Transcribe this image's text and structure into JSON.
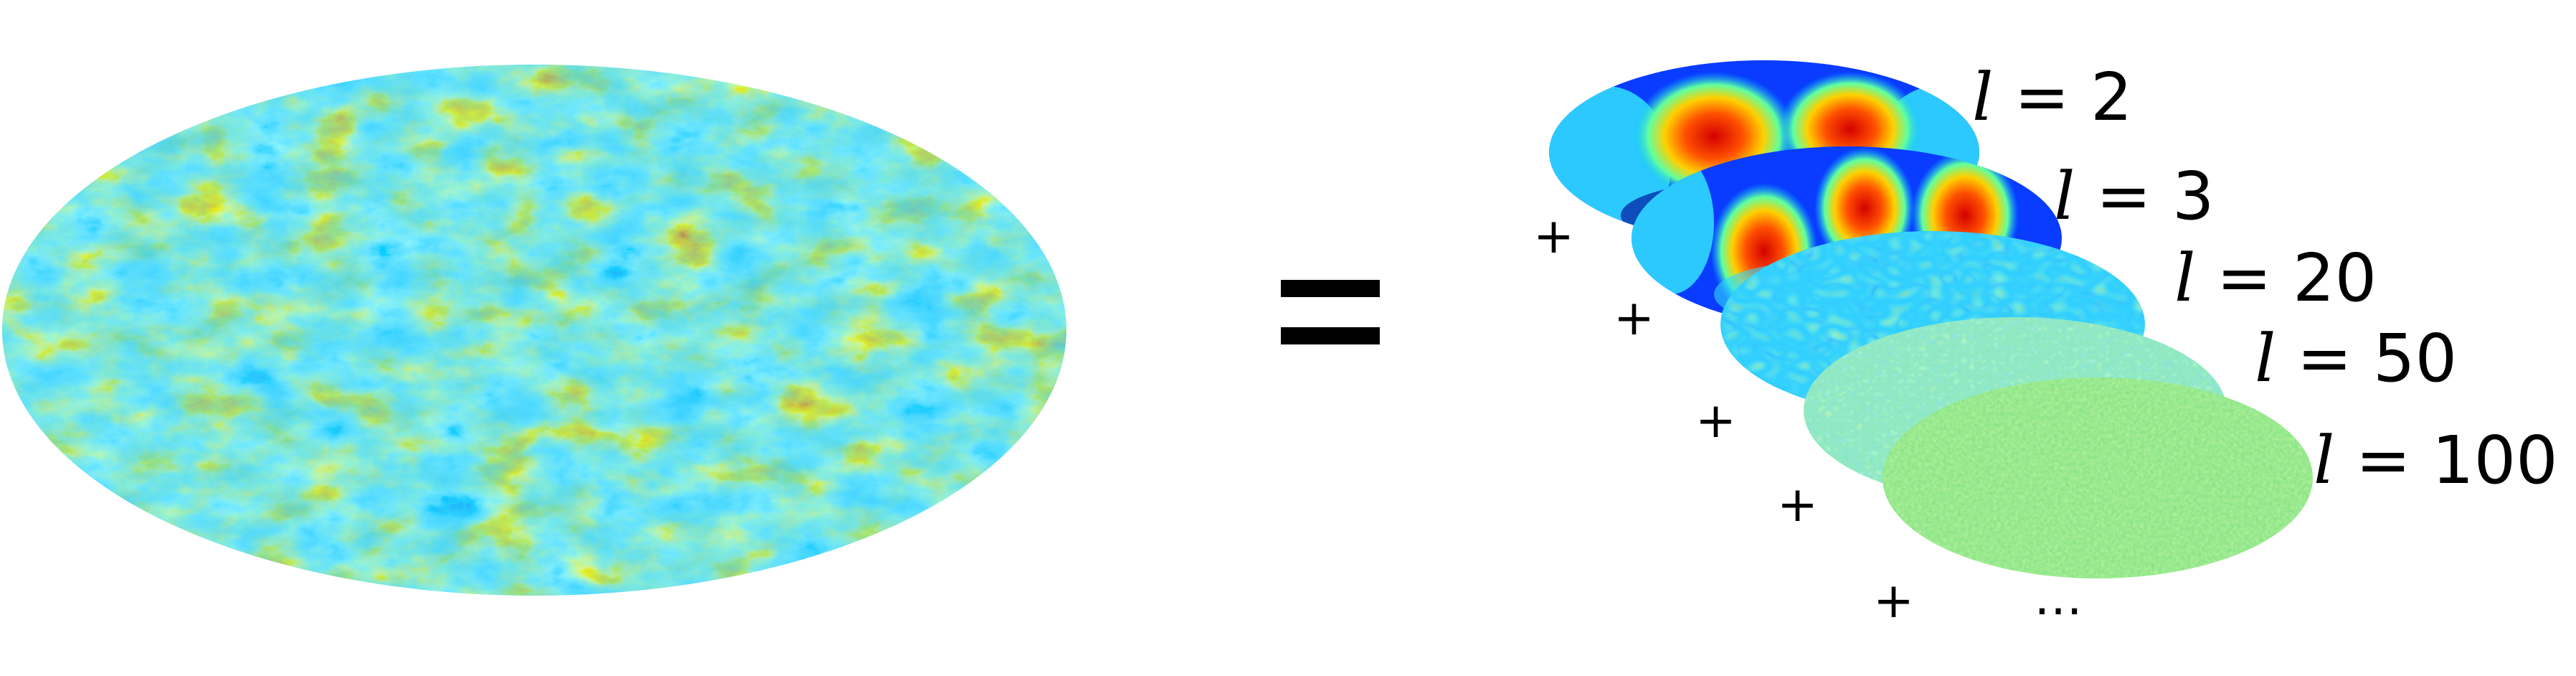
{
  "equals_sign": "=",
  "plus_sign": "+",
  "continuation": "…",
  "multipoles": [
    {
      "var": "l",
      "eq": "=",
      "value": "2"
    },
    {
      "var": "l",
      "eq": "=",
      "value": "3"
    },
    {
      "var": "l",
      "eq": "=",
      "value": "20"
    },
    {
      "var": "l",
      "eq": "=",
      "value": "50"
    },
    {
      "var": "l",
      "eq": "=",
      "value": "100"
    }
  ],
  "colormap": [
    "#00007f",
    "#0033cc",
    "#00a0ff",
    "#3fe0ff",
    "#7fff80",
    "#ffee00",
    "#ff8800",
    "#e00000",
    "#800000"
  ]
}
